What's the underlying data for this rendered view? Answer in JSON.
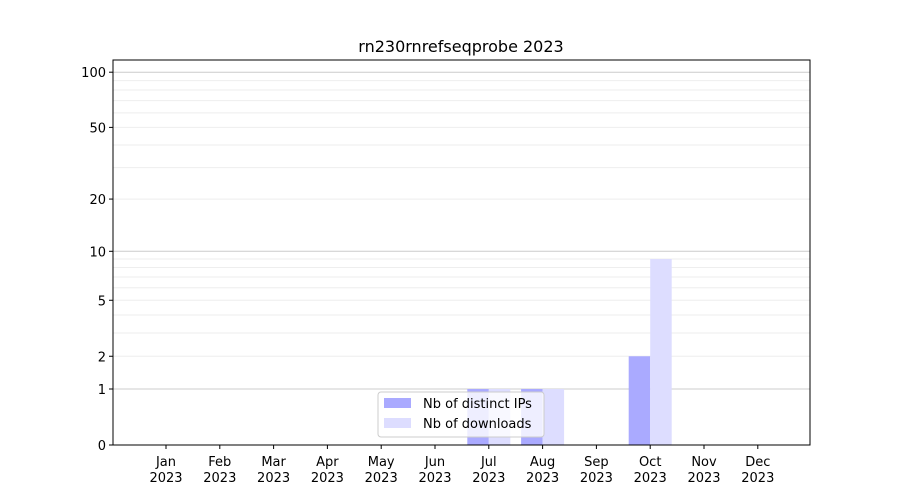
{
  "chart_data": {
    "type": "bar",
    "title": "rn230rnrefseqprobe 2023",
    "xlabel": "",
    "ylabel": "",
    "yscale": "log(1+y)",
    "ylim": [
      0,
      116
    ],
    "yticks": [
      0,
      1,
      2,
      5,
      10,
      20,
      50,
      100
    ],
    "grid": true,
    "legend_position": "lower-center",
    "categories": [
      "Jan\n2023",
      "Feb\n2023",
      "Mar\n2023",
      "Apr\n2023",
      "May\n2023",
      "Jun\n2023",
      "Jul\n2023",
      "Aug\n2023",
      "Sep\n2023",
      "Oct\n2023",
      "Nov\n2023",
      "Dec\n2023"
    ],
    "series": [
      {
        "name": "Nb of distinct IPs",
        "color": "#aaaaff",
        "values": [
          0,
          0,
          0,
          0,
          0,
          0,
          1,
          1,
          0,
          2,
          0,
          0
        ]
      },
      {
        "name": "Nb of downloads",
        "color": "#ddddff",
        "values": [
          0,
          0,
          0,
          0,
          0,
          0,
          1,
          1,
          0,
          9,
          0,
          0
        ]
      }
    ]
  }
}
